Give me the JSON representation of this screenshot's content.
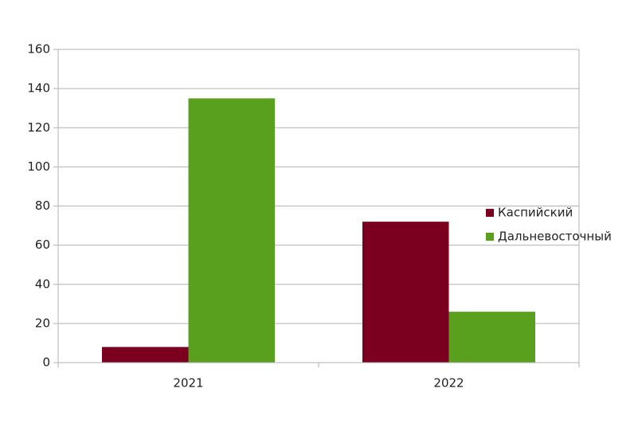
{
  "chart_data": {
    "type": "bar",
    "categories": [
      "2021",
      "2022"
    ],
    "series": [
      {
        "name": "Каспийский",
        "color": "#7b0020",
        "values": [
          8,
          72
        ]
      },
      {
        "name": "Дальневосточный",
        "color": "#58a01e",
        "values": [
          135,
          26
        ]
      }
    ],
    "ylim": [
      0,
      160
    ],
    "yticks": [
      0,
      20,
      40,
      60,
      80,
      100,
      120,
      140,
      160
    ],
    "grid": true,
    "legend": "right"
  }
}
